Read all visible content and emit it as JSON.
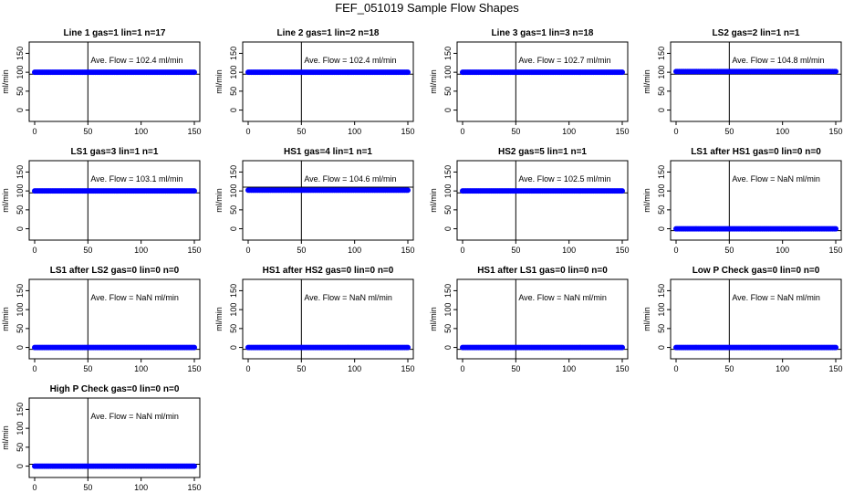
{
  "title": "FEF_051019  Sample Flow Shapes",
  "colors": {
    "points": "#0000ff",
    "axis": "#000000",
    "background": "#ffffff"
  },
  "chart_data": [
    {
      "type": "scatter",
      "title": "Line 1 gas=1 lin=1 n=17",
      "ylabel": "ml/min",
      "xlim": [
        0,
        150
      ],
      "ylim": [
        -30,
        180
      ],
      "xticks": [
        "0",
        "50",
        "100",
        "150"
      ],
      "yticks": [
        "0",
        "50",
        "100",
        "150"
      ],
      "vline_x": 50,
      "hline_y": 95,
      "points_y": 100,
      "annotation": "Ave. Flow =  102.4  ml/min"
    },
    {
      "type": "scatter",
      "title": "Line 2 gas=1 lin=2 n=18",
      "ylabel": "ml/min",
      "xlim": [
        0,
        150
      ],
      "ylim": [
        -30,
        180
      ],
      "xticks": [
        "0",
        "50",
        "100",
        "150"
      ],
      "yticks": [
        "0",
        "50",
        "100",
        "150"
      ],
      "vline_x": 50,
      "hline_y": 95,
      "points_y": 100,
      "annotation": "Ave. Flow =  102.4  ml/min"
    },
    {
      "type": "scatter",
      "title": "Line 3 gas=1 lin=3 n=18",
      "ylabel": "ml/min",
      "xlim": [
        0,
        150
      ],
      "ylim": [
        -30,
        180
      ],
      "xticks": [
        "0",
        "50",
        "100",
        "150"
      ],
      "yticks": [
        "0",
        "50",
        "100",
        "150"
      ],
      "vline_x": 50,
      "hline_y": 95,
      "points_y": 100,
      "annotation": "Ave. Flow =  102.7  ml/min"
    },
    {
      "type": "scatter",
      "title": "LS2 gas=2 lin=1 n=1",
      "ylabel": "ml/min",
      "xlim": [
        0,
        150
      ],
      "ylim": [
        -30,
        180
      ],
      "xticks": [
        "0",
        "50",
        "100",
        "150"
      ],
      "yticks": [
        "0",
        "50",
        "100",
        "150"
      ],
      "vline_x": 50,
      "hline_y": 95,
      "points_y": 102,
      "annotation": "Ave. Flow =  104.8  ml/min"
    },
    {
      "type": "scatter",
      "title": "LS1 gas=3 lin=1 n=1",
      "ylabel": "ml/min",
      "xlim": [
        0,
        150
      ],
      "ylim": [
        -30,
        180
      ],
      "xticks": [
        "0",
        "50",
        "100",
        "150"
      ],
      "yticks": [
        "0",
        "50",
        "100",
        "150"
      ],
      "vline_x": 50,
      "hline_y": 95,
      "points_y": 100,
      "annotation": "Ave. Flow =  103.1  ml/min"
    },
    {
      "type": "scatter",
      "title": "HS1 gas=4 lin=1 n=1",
      "ylabel": "ml/min",
      "xlim": [
        0,
        150
      ],
      "ylim": [
        -30,
        180
      ],
      "xticks": [
        "0",
        "50",
        "100",
        "150"
      ],
      "yticks": [
        "0",
        "50",
        "100",
        "150"
      ],
      "vline_x": 50,
      "hline_y": 110,
      "points_y": 102,
      "annotation": "Ave. Flow =  104.6  ml/min"
    },
    {
      "type": "scatter",
      "title": "HS2 gas=5 lin=1 n=1",
      "ylabel": "ml/min",
      "xlim": [
        0,
        150
      ],
      "ylim": [
        -30,
        180
      ],
      "xticks": [
        "0",
        "50",
        "100",
        "150"
      ],
      "yticks": [
        "0",
        "50",
        "100",
        "150"
      ],
      "vline_x": 50,
      "hline_y": 95,
      "points_y": 100,
      "annotation": "Ave. Flow =  102.5  ml/min"
    },
    {
      "type": "scatter",
      "title": "LS1 after HS1 gas=0 lin=0 n=0",
      "ylabel": "ml/min",
      "xlim": [
        0,
        150
      ],
      "ylim": [
        -30,
        180
      ],
      "xticks": [
        "0",
        "50",
        "100",
        "150"
      ],
      "yticks": [
        "0",
        "50",
        "100",
        "150"
      ],
      "vline_x": 50,
      "hline_y": -5,
      "points_y": 0,
      "annotation": "Ave. Flow =  NaN  ml/min"
    },
    {
      "type": "scatter",
      "title": "LS1 after LS2 gas=0 lin=0 n=0",
      "ylabel": "ml/min",
      "xlim": [
        0,
        150
      ],
      "ylim": [
        -30,
        180
      ],
      "xticks": [
        "0",
        "50",
        "100",
        "150"
      ],
      "yticks": [
        "0",
        "50",
        "100",
        "150"
      ],
      "vline_x": 50,
      "hline_y": -5,
      "points_y": 0,
      "annotation": "Ave. Flow =  NaN  ml/min"
    },
    {
      "type": "scatter",
      "title": "HS1 after HS2 gas=0 lin=0 n=0",
      "ylabel": "ml/min",
      "xlim": [
        0,
        150
      ],
      "ylim": [
        -30,
        180
      ],
      "xticks": [
        "0",
        "50",
        "100",
        "150"
      ],
      "yticks": [
        "0",
        "50",
        "100",
        "150"
      ],
      "vline_x": 50,
      "hline_y": -5,
      "points_y": 0,
      "annotation": "Ave. Flow =  NaN  ml/min"
    },
    {
      "type": "scatter",
      "title": "HS1 after LS1 gas=0 lin=0 n=0",
      "ylabel": "ml/min",
      "xlim": [
        0,
        150
      ],
      "ylim": [
        -30,
        180
      ],
      "xticks": [
        "0",
        "50",
        "100",
        "150"
      ],
      "yticks": [
        "0",
        "50",
        "100",
        "150"
      ],
      "vline_x": 50,
      "hline_y": -5,
      "points_y": 0,
      "annotation": "Ave. Flow =  NaN  ml/min"
    },
    {
      "type": "scatter",
      "title": "Low P Check gas=0 lin=0 n=0",
      "ylabel": "ml/min",
      "xlim": [
        0,
        150
      ],
      "ylim": [
        -30,
        180
      ],
      "xticks": [
        "0",
        "50",
        "100",
        "150"
      ],
      "yticks": [
        "0",
        "50",
        "100",
        "150"
      ],
      "vline_x": 50,
      "hline_y": -5,
      "points_y": 0,
      "annotation": "Ave. Flow =  NaN  ml/min"
    },
    {
      "type": "scatter",
      "title": "High P Check gas=0 lin=0 n=0",
      "ylabel": "ml/min",
      "xlim": [
        0,
        150
      ],
      "ylim": [
        -30,
        180
      ],
      "xticks": [
        "0",
        "50",
        "100",
        "150"
      ],
      "yticks": [
        "0",
        "50",
        "100",
        "150"
      ],
      "vline_x": 50,
      "hline_y": 5,
      "points_y": 0,
      "annotation": "Ave. Flow =  NaN  ml/min"
    }
  ]
}
